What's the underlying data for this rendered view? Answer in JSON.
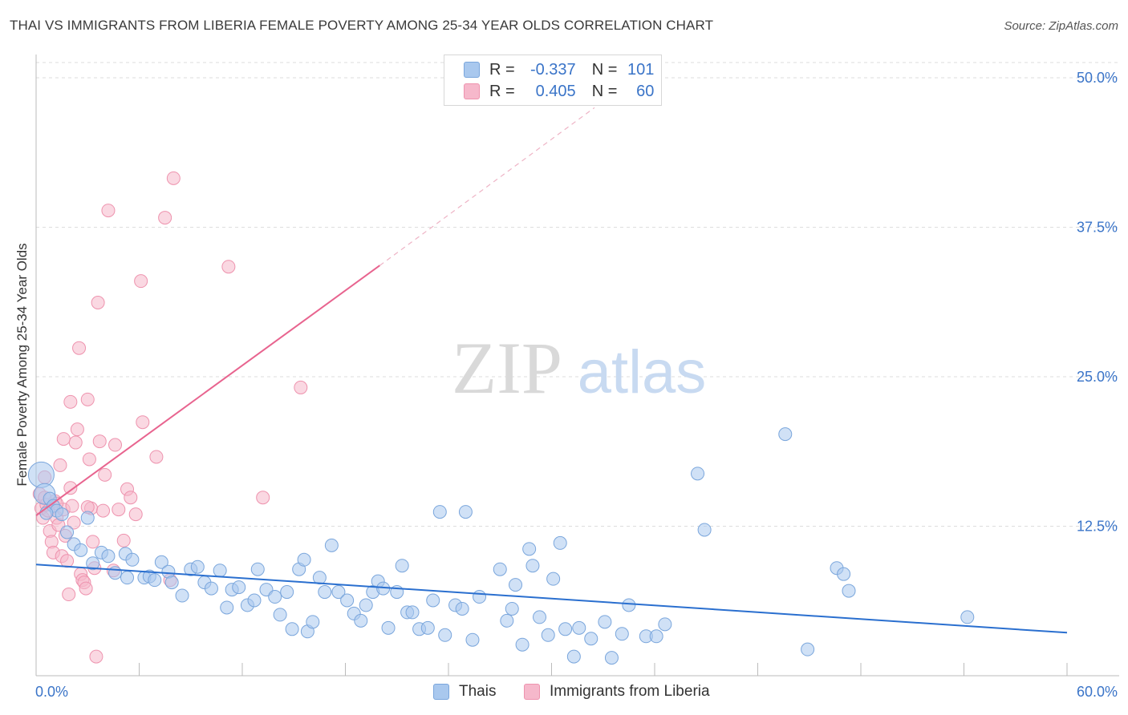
{
  "title": "THAI VS IMMIGRANTS FROM LIBERIA FEMALE POVERTY AMONG 25-34 YEAR OLDS CORRELATION CHART",
  "source": "Source: ZipAtlas.com",
  "watermark": {
    "zip": "ZIP",
    "atlas": "atlas"
  },
  "colors": {
    "blue_fill": "#a9c8ee",
    "blue_stroke": "#7aa6dc",
    "blue_line": "#2a6fcf",
    "pink_fill": "#f6b8cb",
    "pink_stroke": "#ee93ae",
    "pink_line": "#e8648f",
    "axis_text": "#3a74c8",
    "grid": "#dddddd"
  },
  "legend_top": {
    "rows": [
      {
        "r_label": "R =",
        "r_value": "-0.337",
        "n_label": "N =",
        "n_value": "101",
        "series": "Thais"
      },
      {
        "r_label": "R =",
        "r_value": "0.405",
        "n_label": "N =",
        "n_value": "60",
        "series": "Immigrants from Liberia"
      }
    ]
  },
  "legend_bottom": [
    "Thais",
    "Immigrants from Liberia"
  ],
  "chart_data": {
    "type": "scatter",
    "title": "THAI VS IMMIGRANTS FROM LIBERIA FEMALE POVERTY AMONG 25-34 YEAR OLDS CORRELATION CHART",
    "xlabel": "",
    "ylabel": "Female Poverty Among 25-34 Year Olds",
    "xlim": [
      0,
      60
    ],
    "ylim": [
      0,
      50
    ],
    "x_tick_labels": [
      "0.0%",
      "60.0%"
    ],
    "y_ticks": [
      12.5,
      25,
      37.5,
      50
    ],
    "y_tick_labels": [
      "12.5%",
      "25.0%",
      "37.5%",
      "50.0%"
    ],
    "grid": true,
    "legend_position": "bottom",
    "series": [
      {
        "name": "Thais",
        "color": "#a9c8ee",
        "trend": {
          "x": [
            0,
            60
          ],
          "y": [
            9.3,
            3.6
          ],
          "dashed_extension": false
        },
        "points": [
          [
            0.3,
            16.8
          ],
          [
            0.5,
            15.2
          ],
          [
            0.8,
            14.8
          ],
          [
            1.0,
            14.2
          ],
          [
            1.2,
            13.8
          ],
          [
            1.5,
            13.5
          ],
          [
            1.8,
            12.0
          ],
          [
            2.2,
            11.0
          ],
          [
            3.0,
            13.2
          ],
          [
            2.6,
            10.5
          ],
          [
            3.3,
            9.4
          ],
          [
            3.8,
            10.3
          ],
          [
            4.2,
            10.0
          ],
          [
            4.6,
            8.6
          ],
          [
            5.2,
            10.2
          ],
          [
            5.3,
            8.2
          ],
          [
            5.6,
            9.7
          ],
          [
            6.3,
            8.2
          ],
          [
            6.6,
            8.3
          ],
          [
            6.9,
            8.0
          ],
          [
            7.3,
            9.5
          ],
          [
            7.7,
            8.7
          ],
          [
            7.9,
            7.8
          ],
          [
            8.5,
            6.7
          ],
          [
            9.0,
            8.9
          ],
          [
            9.4,
            9.1
          ],
          [
            9.8,
            7.8
          ],
          [
            10.2,
            7.3
          ],
          [
            10.7,
            8.8
          ],
          [
            11.1,
            5.7
          ],
          [
            11.4,
            7.2
          ],
          [
            11.8,
            7.4
          ],
          [
            12.3,
            5.9
          ],
          [
            12.7,
            6.3
          ],
          [
            12.9,
            8.9
          ],
          [
            13.4,
            7.2
          ],
          [
            13.9,
            6.6
          ],
          [
            14.2,
            5.1
          ],
          [
            14.6,
            7.0
          ],
          [
            14.9,
            3.9
          ],
          [
            15.3,
            8.9
          ],
          [
            15.6,
            9.7
          ],
          [
            15.8,
            3.7
          ],
          [
            16.1,
            4.5
          ],
          [
            16.5,
            8.2
          ],
          [
            16.8,
            7.0
          ],
          [
            17.2,
            10.9
          ],
          [
            17.6,
            7.0
          ],
          [
            18.1,
            6.3
          ],
          [
            18.5,
            5.2
          ],
          [
            18.9,
            4.6
          ],
          [
            19.2,
            5.9
          ],
          [
            19.6,
            7.0
          ],
          [
            19.9,
            7.9
          ],
          [
            20.2,
            7.3
          ],
          [
            20.5,
            4.0
          ],
          [
            21.0,
            7.0
          ],
          [
            21.3,
            9.2
          ],
          [
            21.6,
            5.3
          ],
          [
            21.9,
            5.3
          ],
          [
            22.3,
            3.9
          ],
          [
            22.8,
            4.0
          ],
          [
            23.1,
            6.3
          ],
          [
            23.5,
            13.7
          ],
          [
            23.8,
            3.4
          ],
          [
            24.4,
            5.9
          ],
          [
            24.8,
            5.6
          ],
          [
            25.0,
            13.7
          ],
          [
            25.4,
            3.0
          ],
          [
            25.8,
            6.6
          ],
          [
            27.0,
            8.9
          ],
          [
            27.4,
            4.6
          ],
          [
            27.7,
            5.6
          ],
          [
            27.9,
            7.6
          ],
          [
            28.3,
            2.6
          ],
          [
            28.7,
            10.6
          ],
          [
            28.9,
            9.2
          ],
          [
            29.3,
            4.9
          ],
          [
            29.8,
            3.4
          ],
          [
            30.1,
            8.1
          ],
          [
            30.5,
            11.1
          ],
          [
            30.8,
            3.9
          ],
          [
            31.3,
            1.6
          ],
          [
            31.6,
            4.0
          ],
          [
            32.3,
            3.1
          ],
          [
            33.1,
            4.5
          ],
          [
            33.5,
            1.5
          ],
          [
            34.1,
            3.5
          ],
          [
            34.5,
            5.9
          ],
          [
            35.5,
            3.3
          ],
          [
            36.1,
            3.3
          ],
          [
            36.6,
            4.3
          ],
          [
            38.5,
            16.9
          ],
          [
            38.9,
            12.2
          ],
          [
            43.6,
            20.2
          ],
          [
            44.9,
            2.2
          ],
          [
            46.6,
            9.0
          ],
          [
            47.0,
            8.5
          ],
          [
            47.3,
            7.1
          ],
          [
            54.2,
            4.9
          ],
          [
            0.6,
            13.6
          ]
        ]
      },
      {
        "name": "Immigrants from Liberia",
        "color": "#f6b8cb",
        "trend": {
          "x": [
            0,
            20
          ],
          "y": [
            13.4,
            34.3
          ],
          "dashed_extension": true,
          "dashed_to": [
            32.5,
            47.5
          ]
        },
        "points": [
          [
            0.2,
            15.2
          ],
          [
            0.3,
            14.0
          ],
          [
            0.4,
            13.2
          ],
          [
            0.5,
            16.6
          ],
          [
            0.6,
            14.3
          ],
          [
            0.7,
            13.8
          ],
          [
            0.8,
            12.1
          ],
          [
            0.9,
            11.2
          ],
          [
            1.0,
            10.3
          ],
          [
            1.1,
            14.6
          ],
          [
            1.2,
            13.2
          ],
          [
            1.3,
            12.6
          ],
          [
            1.4,
            17.6
          ],
          [
            1.5,
            10.0
          ],
          [
            1.6,
            13.9
          ],
          [
            1.7,
            11.7
          ],
          [
            1.8,
            9.6
          ],
          [
            1.9,
            6.8
          ],
          [
            2.0,
            15.7
          ],
          [
            2.1,
            14.2
          ],
          [
            2.2,
            12.8
          ],
          [
            2.3,
            19.5
          ],
          [
            2.4,
            20.6
          ],
          [
            2.5,
            27.4
          ],
          [
            2.6,
            8.5
          ],
          [
            2.7,
            8.0
          ],
          [
            2.8,
            7.8
          ],
          [
            2.9,
            7.3
          ],
          [
            3.0,
            23.1
          ],
          [
            3.1,
            18.1
          ],
          [
            3.2,
            14.0
          ],
          [
            3.3,
            11.2
          ],
          [
            3.4,
            9.0
          ],
          [
            3.5,
            1.6
          ],
          [
            3.6,
            31.2
          ],
          [
            3.7,
            19.6
          ],
          [
            3.9,
            13.8
          ],
          [
            4.0,
            16.8
          ],
          [
            4.2,
            38.9
          ],
          [
            4.5,
            8.8
          ],
          [
            4.6,
            19.3
          ],
          [
            4.8,
            13.9
          ],
          [
            5.1,
            11.3
          ],
          [
            5.3,
            15.6
          ],
          [
            5.5,
            14.9
          ],
          [
            5.8,
            13.5
          ],
          [
            6.1,
            33.0
          ],
          [
            6.2,
            21.2
          ],
          [
            7.0,
            18.3
          ],
          [
            7.5,
            38.3
          ],
          [
            7.8,
            8.0
          ],
          [
            8.0,
            41.6
          ],
          [
            11.2,
            34.2
          ],
          [
            13.2,
            14.9
          ],
          [
            15.4,
            24.1
          ],
          [
            1.6,
            19.8
          ],
          [
            2.0,
            22.9
          ],
          [
            0.5,
            14.9
          ],
          [
            1.2,
            14.4
          ],
          [
            3.0,
            14.1
          ]
        ]
      }
    ]
  }
}
